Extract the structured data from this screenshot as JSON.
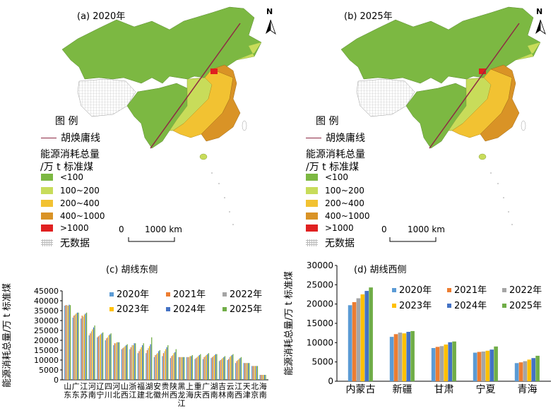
{
  "maps": [
    {
      "label": "(a) 2020年",
      "north": "N",
      "scale_zero": "0",
      "scale_end": "1000 km"
    },
    {
      "label": "(b) 2025年",
      "north": "N",
      "scale_zero": "0",
      "scale_end": "1000 km"
    }
  ],
  "legend": {
    "title": "图 例",
    "hu_line": "胡焕庸线",
    "category_title_1": "能源消耗总量",
    "category_title_2": "/万 t 标准煤",
    "classes": [
      {
        "label": "<100",
        "color": "#7cb842"
      },
      {
        "label": "100~200",
        "color": "#c8dc5a"
      },
      {
        "label": "200~400",
        "color": "#f2c232"
      },
      {
        "label": "400~1000",
        "color": "#d99326"
      },
      {
        "label": ">1000",
        "color": "#e02020"
      },
      {
        "label": "无数据",
        "color": "#ffffff"
      }
    ]
  },
  "series_colors": {
    "2020年": "#5b9bd5",
    "2021年": "#ed7d31",
    "2022年": "#a5a5a5",
    "2023年": "#ffc000",
    "2024年": "#4472c4",
    "2025年": "#70ad47"
  },
  "chart_data": [
    {
      "type": "bar",
      "title": "(c) 胡线东侧",
      "ylabel": "能源消耗总量/万 t 标准煤",
      "ylim": [
        0,
        45000
      ],
      "yticks": [
        0,
        5000,
        10000,
        15000,
        20000,
        25000,
        30000,
        35000,
        40000,
        45000
      ],
      "legend_position": "top-right",
      "categories": [
        [
          "山",
          "东"
        ],
        [
          "广",
          "东"
        ],
        [
          "江",
          "苏"
        ],
        [
          "河",
          "南"
        ],
        [
          "辽",
          "宁"
        ],
        [
          "四",
          "川"
        ],
        [
          "河",
          "北"
        ],
        [
          "山",
          "西"
        ],
        [
          "浙",
          "江"
        ],
        [
          "福",
          "建"
        ],
        [
          "湖",
          "北"
        ],
        [
          "安",
          "徽"
        ],
        [
          "贵",
          "州"
        ],
        [
          "陕",
          "西"
        ],
        [
          "黑",
          "龙",
          "江"
        ],
        [
          "上",
          "海"
        ],
        [
          "重",
          "庆"
        ],
        [
          "广",
          "西"
        ],
        [
          "湖",
          "南"
        ],
        [
          "吉",
          "林"
        ],
        [
          "云",
          "南"
        ],
        [
          "江",
          "西"
        ],
        [
          "天",
          "津"
        ],
        [
          "北",
          "京"
        ],
        [
          "海",
          "南"
        ]
      ],
      "series": [
        {
          "name": "2020年",
          "values": [
            37500,
            31500,
            31000,
            22500,
            21500,
            20000,
            17500,
            15500,
            15500,
            13500,
            13500,
            11500,
            12000,
            11000,
            11500,
            11500,
            10500,
            10500,
            11000,
            9500,
            10000,
            8500,
            8500,
            7000,
            2500
          ]
        },
        {
          "name": "2021年",
          "values": [
            37800,
            32500,
            32500,
            23500,
            22000,
            21000,
            18500,
            16000,
            16500,
            14500,
            15000,
            12500,
            13500,
            12000,
            11500,
            11500,
            11000,
            11500,
            11500,
            10000,
            10500,
            9500,
            8500,
            7000,
            2500
          ]
        },
        {
          "name": "2022年",
          "values": [
            37800,
            33000,
            32000,
            24500,
            22500,
            21500,
            18500,
            16500,
            17500,
            15500,
            16000,
            13000,
            14500,
            12500,
            11500,
            11500,
            11500,
            12000,
            12000,
            10500,
            11500,
            10000,
            8500,
            7000,
            2500
          ]
        },
        {
          "name": "2023年",
          "values": [
            37500,
            33500,
            33000,
            25500,
            23000,
            22500,
            19000,
            17000,
            17500,
            16500,
            17000,
            13500,
            15500,
            13500,
            11500,
            12000,
            12000,
            12500,
            12500,
            11000,
            12000,
            10500,
            8500,
            7000,
            2500
          ]
        },
        {
          "name": "2024年",
          "values": [
            38000,
            34000,
            33500,
            26500,
            23500,
            23000,
            19000,
            17500,
            18500,
            17500,
            18000,
            14500,
            16500,
            14000,
            11500,
            12000,
            12500,
            13000,
            13000,
            11500,
            12500,
            11000,
            8500,
            7000,
            2500
          ]
        },
        {
          "name": "2025年",
          "values": [
            37800,
            34000,
            34000,
            27500,
            24000,
            23500,
            19000,
            18000,
            18500,
            18500,
            21500,
            15000,
            17500,
            15500,
            11500,
            12500,
            13000,
            13500,
            13000,
            12000,
            13000,
            11500,
            8500,
            7000,
            2500
          ]
        }
      ]
    },
    {
      "type": "bar",
      "title": "(d) 胡线西侧",
      "ylabel": "能源消耗总量/万 t 标准煤",
      "ylim": [
        0,
        30000
      ],
      "yticks": [
        0,
        5000,
        10000,
        15000,
        20000,
        25000,
        30000
      ],
      "legend_position": "top-right",
      "categories": [
        "内蒙古",
        "新疆",
        "甘肃",
        "宁夏",
        "青海"
      ],
      "series": [
        {
          "name": "2020年",
          "values": [
            19700,
            11500,
            8600,
            7400,
            4700
          ]
        },
        {
          "name": "2021年",
          "values": [
            20500,
            12200,
            8900,
            7600,
            4900
          ]
        },
        {
          "name": "2022年",
          "values": [
            21500,
            12600,
            9100,
            7700,
            5200
          ]
        },
        {
          "name": "2023年",
          "values": [
            22500,
            12400,
            9500,
            7900,
            5600
          ]
        },
        {
          "name": "2024年",
          "values": [
            23400,
            12800,
            10100,
            8200,
            6000
          ]
        },
        {
          "name": "2025年",
          "values": [
            24300,
            13000,
            10300,
            9000,
            6600
          ]
        }
      ]
    }
  ]
}
